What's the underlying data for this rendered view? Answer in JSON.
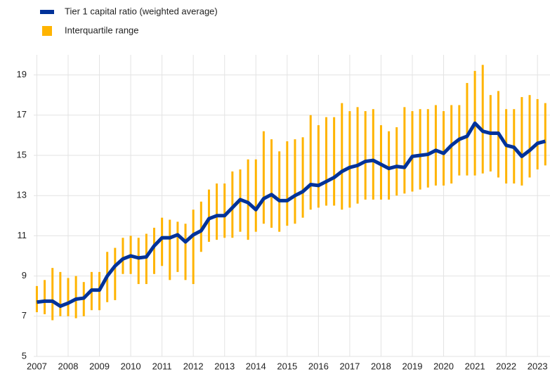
{
  "chart_data": {
    "type": "line-range",
    "x": [
      2007,
      2007.25,
      2007.5,
      2007.75,
      2008,
      2008.25,
      2008.5,
      2008.75,
      2009,
      2009.25,
      2009.5,
      2009.75,
      2010,
      2010.25,
      2010.5,
      2010.75,
      2011,
      2011.25,
      2011.5,
      2011.75,
      2012,
      2012.25,
      2012.5,
      2012.75,
      2013,
      2013.25,
      2013.5,
      2013.75,
      2014,
      2014.25,
      2014.5,
      2014.75,
      2015,
      2015.25,
      2015.5,
      2015.75,
      2016,
      2016.25,
      2016.5,
      2016.75,
      2017,
      2017.25,
      2017.5,
      2017.75,
      2018,
      2018.25,
      2018.5,
      2018.75,
      2019,
      2019.25,
      2019.5,
      2019.75,
      2020,
      2020.25,
      2020.5,
      2020.75,
      2021,
      2021.25,
      2021.5,
      2021.75,
      2022,
      2022.25,
      2022.5,
      2022.75,
      2023,
      2023.25
    ],
    "series": [
      {
        "name": "Tier 1 capital ratio (weighted average)",
        "color": "#003299",
        "values": [
          7.7,
          7.75,
          7.75,
          7.5,
          7.65,
          7.85,
          7.9,
          8.3,
          8.3,
          9.0,
          9.5,
          9.85,
          10.0,
          9.9,
          9.95,
          10.5,
          10.9,
          10.9,
          11.05,
          10.7,
          11.05,
          11.25,
          11.85,
          12.0,
          12.0,
          12.4,
          12.8,
          12.65,
          12.3,
          12.85,
          13.05,
          12.75,
          12.75,
          13.0,
          13.2,
          13.55,
          13.5,
          13.7,
          13.9,
          14.2,
          14.4,
          14.5,
          14.7,
          14.75,
          14.55,
          14.35,
          14.45,
          14.4,
          14.95,
          15.0,
          15.05,
          15.25,
          15.1,
          15.5,
          15.8,
          15.95,
          16.6,
          16.2,
          16.1,
          16.1,
          15.5,
          15.4,
          14.95,
          15.25,
          15.6,
          15.7
        ]
      },
      {
        "name": "Interquartile range",
        "color": "#ffb400",
        "low": [
          7.2,
          7.1,
          6.8,
          7.0,
          7.0,
          6.9,
          7.0,
          7.3,
          7.3,
          7.7,
          7.8,
          9.1,
          9.1,
          8.6,
          8.6,
          9.1,
          9.5,
          8.8,
          9.2,
          8.8,
          8.6,
          10.2,
          10.7,
          10.8,
          10.9,
          10.9,
          11.2,
          10.8,
          11.2,
          11.6,
          11.4,
          11.2,
          11.5,
          11.6,
          11.9,
          12.3,
          12.4,
          12.5,
          12.5,
          12.3,
          12.4,
          12.6,
          12.8,
          12.8,
          12.8,
          12.8,
          13.0,
          13.1,
          13.2,
          13.3,
          13.4,
          13.5,
          13.5,
          13.6,
          14.0,
          14.0,
          14.0,
          14.1,
          14.2,
          13.9,
          13.6,
          13.6,
          13.5,
          13.9,
          14.3,
          14.5
        ],
        "high": [
          8.5,
          8.8,
          9.4,
          9.2,
          8.9,
          9.0,
          8.7,
          9.2,
          9.2,
          10.2,
          10.4,
          10.9,
          11.0,
          10.9,
          11.1,
          11.4,
          11.9,
          11.8,
          11.7,
          11.6,
          12.3,
          12.7,
          13.3,
          13.6,
          13.6,
          14.2,
          14.3,
          14.8,
          14.8,
          16.2,
          15.8,
          15.2,
          15.7,
          15.8,
          15.9,
          17.0,
          16.5,
          16.9,
          16.9,
          17.6,
          17.2,
          17.4,
          17.2,
          17.3,
          16.5,
          16.2,
          16.4,
          17.4,
          17.2,
          17.3,
          17.3,
          17.5,
          17.2,
          17.5,
          17.5,
          18.6,
          19.2,
          19.5,
          18.0,
          18.2,
          17.3,
          17.3,
          17.9,
          18.0,
          17.8,
          17.6
        ]
      }
    ],
    "xlim": [
      2006.9,
      2023.4
    ],
    "xticks": [
      2007,
      2008,
      2009,
      2010,
      2011,
      2012,
      2013,
      2014,
      2015,
      2016,
      2017,
      2018,
      2019,
      2020,
      2021,
      2022,
      2023
    ],
    "ylim": [
      5,
      20
    ],
    "yticks": [
      5,
      7,
      9,
      11,
      13,
      15,
      17,
      19
    ],
    "grid": true
  }
}
